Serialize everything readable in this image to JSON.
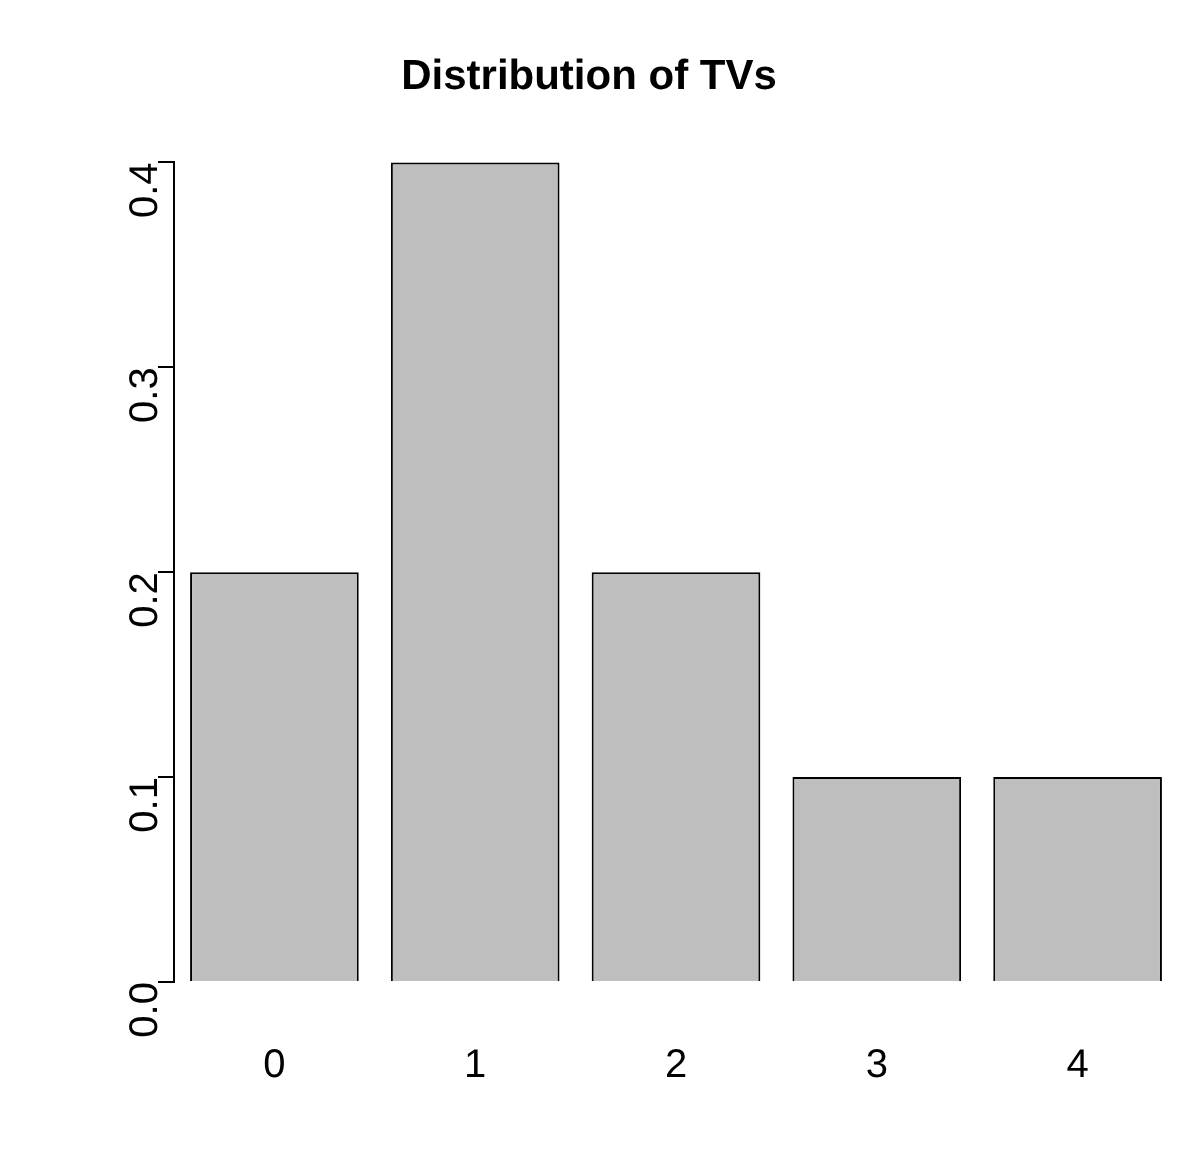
{
  "chart_data": {
    "type": "bar",
    "title": "Distribution of TVs",
    "categories": [
      "0",
      "1",
      "2",
      "3",
      "4"
    ],
    "values": [
      0.2,
      0.4,
      0.2,
      0.1,
      0.1
    ],
    "color": "#bebebe",
    "ylim": [
      0,
      0.4
    ],
    "yticks": [
      {
        "value": 0,
        "label": "0.0"
      },
      {
        "value": 0.1,
        "label": "0.1"
      },
      {
        "value": 0.2,
        "label": "0.2"
      },
      {
        "value": 0.3,
        "label": "0.3"
      },
      {
        "value": 0.4,
        "label": "0.4"
      }
    ],
    "grid": false,
    "legend": false
  }
}
